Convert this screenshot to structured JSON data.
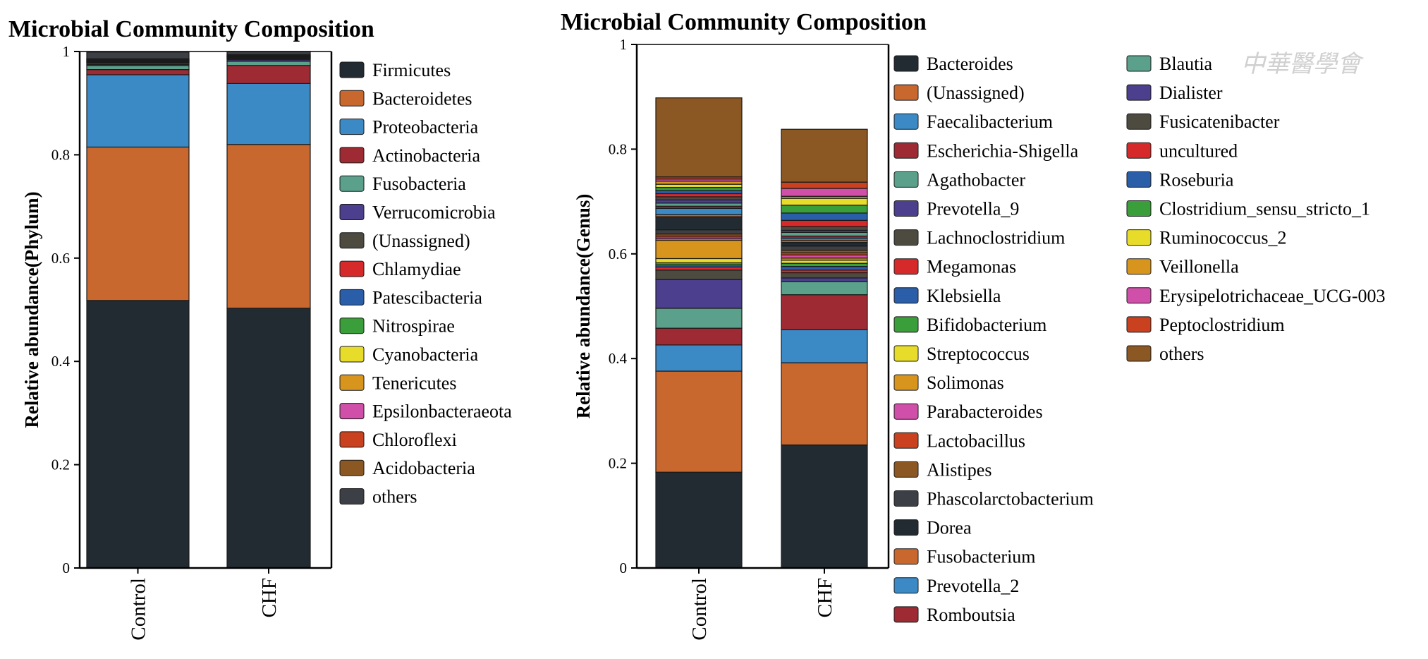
{
  "watermark": "中華醫學會",
  "chart_data": [
    {
      "type": "bar",
      "stacked": true,
      "title": "Microbial Community Composition",
      "ylabel": "Relative abundance(Phylum)",
      "xlabel": "",
      "ylim": [
        0,
        1
      ],
      "yticks": [
        "0",
        "0.2",
        "0.4",
        "0.6",
        "0.8",
        "1"
      ],
      "categories": [
        "Control",
        "CHF"
      ],
      "legend_position": "right",
      "series": [
        {
          "name": "Firmicutes",
          "color": "#222a32",
          "values": [
            0.518,
            0.503
          ]
        },
        {
          "name": "Bacteroidetes",
          "color": "#c8672e",
          "values": [
            0.297,
            0.317
          ]
        },
        {
          "name": "Proteobacteria",
          "color": "#3b8ac6",
          "values": [
            0.14,
            0.118
          ]
        },
        {
          "name": "Actinobacteria",
          "color": "#9e2a33",
          "values": [
            0.01,
            0.035
          ]
        },
        {
          "name": "Fusobacteria",
          "color": "#5aa08a",
          "values": [
            0.008,
            0.008
          ]
        },
        {
          "name": "Verrucomicrobia",
          "color": "#4b3f8e",
          "values": [
            0.002,
            0.003
          ]
        },
        {
          "name": "(Unassigned)",
          "color": "#4d4a40",
          "values": [
            0.003,
            0.002
          ]
        },
        {
          "name": "Chlamydiae",
          "color": "#d62a2a",
          "values": [
            0.001,
            0.001
          ]
        },
        {
          "name": "Patescibacteria",
          "color": "#2b5ea8",
          "values": [
            0.001,
            0.001
          ]
        },
        {
          "name": "Nitrospirae",
          "color": "#3a9e3a",
          "values": [
            0.001,
            0.001
          ]
        },
        {
          "name": "Cyanobacteria",
          "color": "#e8dc2a",
          "values": [
            0.001,
            0.001
          ]
        },
        {
          "name": "Tenericutes",
          "color": "#d8951e",
          "values": [
            0.001,
            0.001
          ]
        },
        {
          "name": "Epsilonbacteraeota",
          "color": "#d04fa8",
          "values": [
            0.001,
            0.001
          ]
        },
        {
          "name": "Chloroflexi",
          "color": "#c9411f",
          "values": [
            0.001,
            0.001
          ]
        },
        {
          "name": "Acidobacteria",
          "color": "#8b5723",
          "values": [
            0.001,
            0.001
          ]
        },
        {
          "name": "others",
          "color": "#3c3f45",
          "values": [
            0.013,
            0.006
          ]
        }
      ]
    },
    {
      "type": "bar",
      "stacked": true,
      "title": "Microbial Community Composition",
      "ylabel": "Relative abundance(Genus)",
      "xlabel": "",
      "ylim": [
        0,
        1
      ],
      "yticks": [
        "0",
        "0.2",
        "0.4",
        "0.6",
        "0.8",
        "1"
      ],
      "categories": [
        "Control",
        "CHF"
      ],
      "legend_position": "right",
      "series": [
        {
          "name": "Bacteroides",
          "color": "#222a32",
          "values": [
            0.183,
            0.235
          ]
        },
        {
          "name": "(Unassigned)",
          "color": "#c8672e",
          "values": [
            0.193,
            0.157
          ]
        },
        {
          "name": "Faecalibacterium",
          "color": "#3b8ac6",
          "values": [
            0.05,
            0.063
          ]
        },
        {
          "name": "Escherichia-Shigella",
          "color": "#9e2a33",
          "values": [
            0.032,
            0.067
          ]
        },
        {
          "name": "Agathobacter",
          "color": "#5aa08a",
          "values": [
            0.038,
            0.025
          ]
        },
        {
          "name": "Prevotella_9",
          "color": "#4b3f8e",
          "values": [
            0.055,
            0.007
          ]
        },
        {
          "name": "Lachnoclostridium",
          "color": "#4d4a40",
          "values": [
            0.018,
            0.01
          ]
        },
        {
          "name": "Megamonas",
          "color": "#d62a2a",
          "values": [
            0.006,
            0.005
          ]
        },
        {
          "name": "Klebsiella",
          "color": "#2b5ea8",
          "values": [
            0.004,
            0.007
          ]
        },
        {
          "name": "Bifidobacterium",
          "color": "#3a9e3a",
          "values": [
            0.004,
            0.006
          ]
        },
        {
          "name": "Streptococcus",
          "color": "#e8dc2a",
          "values": [
            0.008,
            0.006
          ]
        },
        {
          "name": "Solimonas",
          "color": "#d8951e",
          "values": [
            0.035,
            0.004
          ]
        },
        {
          "name": "Parabacteroides",
          "color": "#d04fa8",
          "values": [
            0.004,
            0.006
          ]
        },
        {
          "name": "Lactobacillus",
          "color": "#c9411f",
          "values": [
            0.004,
            0.004
          ]
        },
        {
          "name": "Alistipes",
          "color": "#8b5723",
          "values": [
            0.004,
            0.005
          ]
        },
        {
          "name": "Phascolarctobacterium",
          "color": "#3c3f45",
          "values": [
            0.008,
            0.008
          ]
        },
        {
          "name": "Dorea",
          "color": "#222a32",
          "values": [
            0.025,
            0.007
          ]
        },
        {
          "name": "Fusobacterium",
          "color": "#c8672e",
          "values": [
            0.004,
            0.004
          ]
        },
        {
          "name": "Prevotella_2",
          "color": "#3b8ac6",
          "values": [
            0.012,
            0.004
          ]
        },
        {
          "name": "Romboutsia",
          "color": "#9e2a33",
          "values": [
            0.004,
            0.004
          ]
        },
        {
          "name": "Blautia",
          "color": "#5aa08a",
          "values": [
            0.006,
            0.007
          ]
        },
        {
          "name": "Dialister",
          "color": "#4b3f8e",
          "values": [
            0.006,
            0.004
          ]
        },
        {
          "name": "Fusicatenibacter",
          "color": "#4d4a40",
          "values": [
            0.006,
            0.007
          ]
        },
        {
          "name": "uncultured",
          "color": "#d62a2a",
          "values": [
            0.006,
            0.012
          ]
        },
        {
          "name": "Roseburia",
          "color": "#2b5ea8",
          "values": [
            0.006,
            0.014
          ]
        },
        {
          "name": "Clostridium_sensu_stricto_1",
          "color": "#3a9e3a",
          "values": [
            0.006,
            0.015
          ]
        },
        {
          "name": "Ruminococcus_2",
          "color": "#e8dc2a",
          "values": [
            0.006,
            0.013
          ]
        },
        {
          "name": "Veillonella",
          "color": "#d8951e",
          "values": [
            0.006,
            0.004
          ]
        },
        {
          "name": "Erysipelotrichaceae_UCG-003",
          "color": "#d04fa8",
          "values": [
            0.004,
            0.015
          ]
        },
        {
          "name": "Peptoclostridium",
          "color": "#c9411f",
          "values": [
            0.004,
            0.012
          ]
        },
        {
          "name": "others",
          "color": "#8b5723",
          "values": [
            0.151,
            0.101
          ]
        }
      ]
    }
  ]
}
